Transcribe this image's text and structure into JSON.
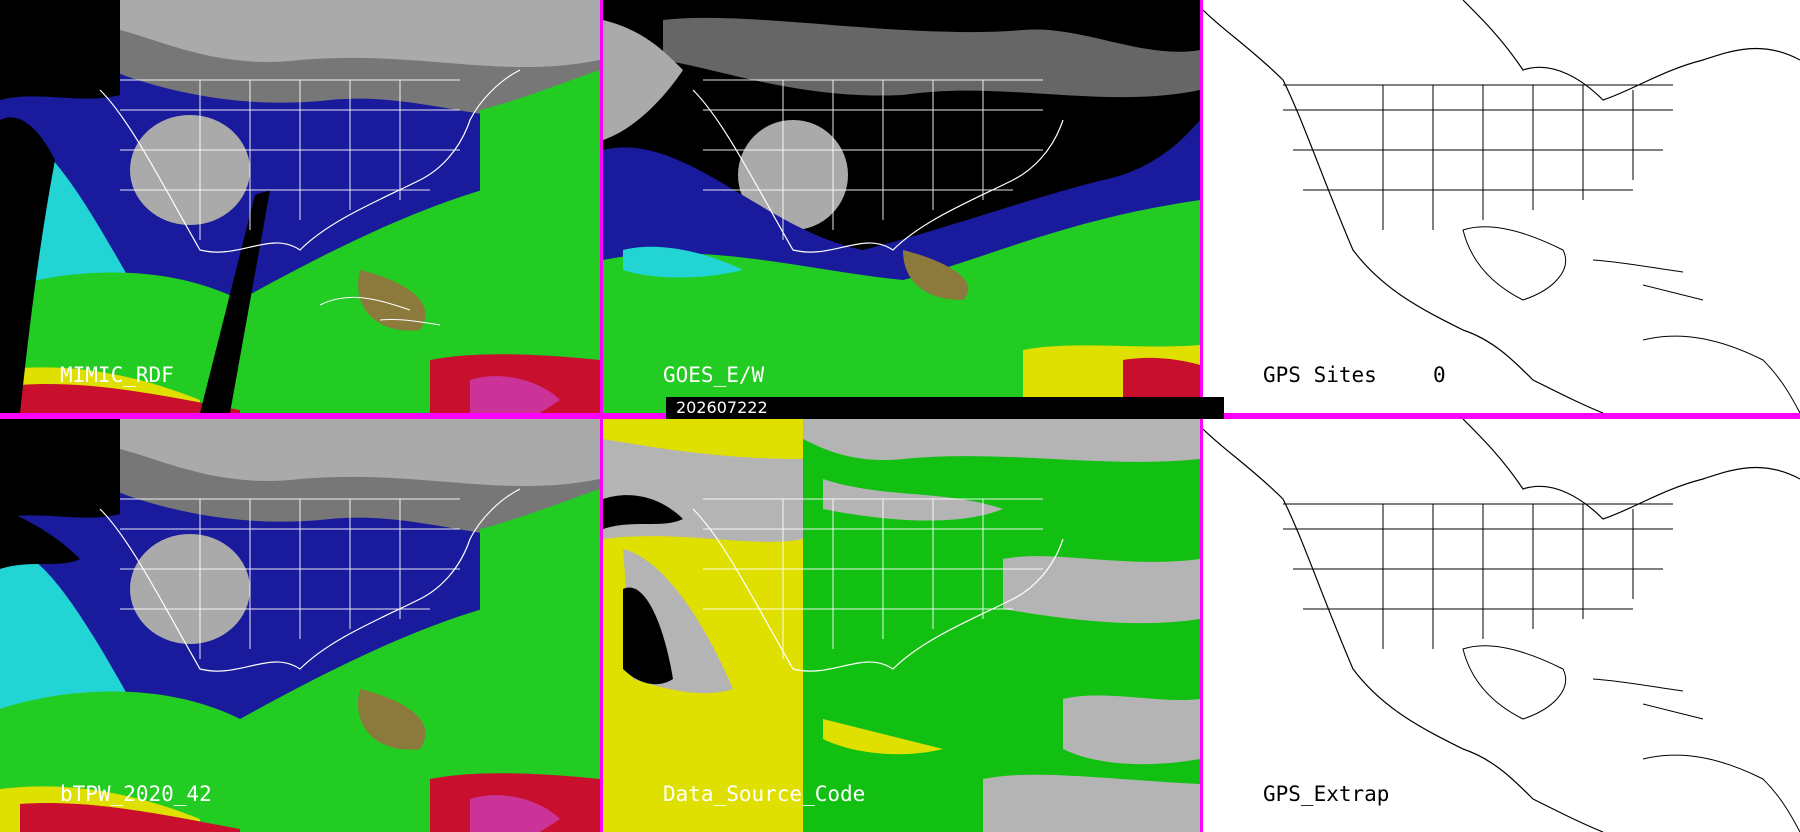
{
  "timestamp": "202607222",
  "panels": {
    "mimic": {
      "label": "MIMIC_RDF"
    },
    "goes": {
      "label": "GOES_E/W"
    },
    "gps_sites": {
      "label": "GPS Sites",
      "count": "0"
    },
    "btpw": {
      "label": "bTPW_2020_42"
    },
    "source": {
      "label": "Data_Source_Code"
    },
    "gps_extrap": {
      "label": "GPS_Extrap"
    }
  },
  "colors": {
    "divider": "#ff00ff",
    "very_moist": "#c8102e",
    "moist": "#e0e000",
    "medium": "#22cc22",
    "dryish": "#22d4d4",
    "dry": "#1a1a9c",
    "very_dry": "#a0a0a0",
    "source_green": "#11c011",
    "source_yellow": "#e0e000",
    "source_gray": "#b4b4b4"
  }
}
